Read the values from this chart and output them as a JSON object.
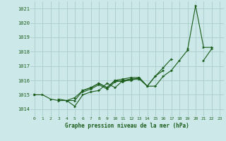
{
  "xlabel": "Graphe pression niveau de la mer (hPa)",
  "xlim": [
    -0.5,
    23.5
  ],
  "ylim": [
    1013.5,
    1021.5
  ],
  "yticks": [
    1014,
    1015,
    1016,
    1017,
    1018,
    1019,
    1020,
    1021
  ],
  "xticks": [
    0,
    1,
    2,
    3,
    4,
    5,
    6,
    7,
    8,
    9,
    10,
    11,
    12,
    13,
    14,
    15,
    16,
    17,
    18,
    19,
    20,
    21,
    22,
    23
  ],
  "background_color": "#cce8e8",
  "grid_color": "#aacccc",
  "line_color": "#1a5c1a",
  "series": [
    [
      1015.0,
      1015.0,
      1014.7,
      1014.6,
      1014.6,
      1014.2,
      1015.0,
      1015.2,
      1015.3,
      1015.8,
      1015.5,
      1016.0,
      1016.0,
      1016.2,
      1015.6,
      1015.6,
      1016.3,
      1016.7,
      1017.4,
      1018.1,
      1021.2,
      1018.3,
      1018.3,
      null
    ],
    [
      1015.0,
      null,
      null,
      1014.7,
      1014.6,
      1014.6,
      1015.3,
      1015.5,
      1015.8,
      1015.5,
      1016.0,
      1015.9,
      1016.1,
      1016.1,
      1015.6,
      1016.3,
      1016.9,
      1017.5,
      null,
      1018.2,
      null,
      null,
      null,
      null
    ],
    [
      1015.0,
      null,
      null,
      null,
      1014.6,
      1014.8,
      1015.3,
      1015.5,
      1015.8,
      1015.5,
      1016.0,
      1016.1,
      1016.2,
      1016.2,
      1015.6,
      1016.3,
      1016.7,
      null,
      null,
      null,
      null,
      null,
      null,
      null
    ],
    [
      1015.0,
      null,
      null,
      null,
      null,
      null,
      1015.2,
      1015.4,
      1015.7,
      1015.4,
      1015.9,
      1016.0,
      1016.1,
      1016.1,
      null,
      null,
      null,
      null,
      null,
      null,
      null,
      1017.4,
      1018.2,
      null
    ]
  ]
}
